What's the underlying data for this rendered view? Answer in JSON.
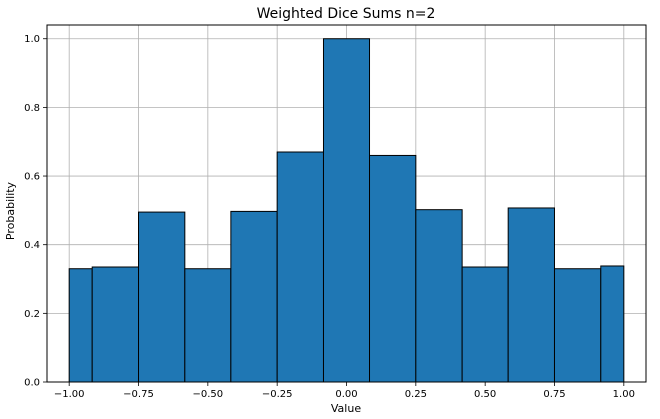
{
  "chart_data": {
    "type": "bar",
    "title": "Weighted Dice Sums n=2",
    "xlabel": "Value",
    "ylabel": "Probability",
    "xlim": [
      -1.08,
      1.08
    ],
    "ylim": [
      0,
      1.04
    ],
    "grid": true,
    "bar_color": "#1f77b4",
    "edge_color": "#000000",
    "x_ticks": [
      -1.0,
      -0.75,
      -0.5,
      -0.25,
      0.0,
      0.25,
      0.5,
      0.75,
      1.0
    ],
    "x_tick_labels": [
      "−1.00",
      "−0.75",
      "−0.50",
      "−0.25",
      "0.00",
      "0.25",
      "0.50",
      "0.75",
      "1.00"
    ],
    "y_ticks": [
      0.0,
      0.2,
      0.4,
      0.6,
      0.8,
      1.0
    ],
    "y_tick_labels": [
      "0.0",
      "0.2",
      "0.4",
      "0.6",
      "0.8",
      "1.0"
    ],
    "bins": [
      {
        "left": -1.0,
        "right": -0.917,
        "value": 0.33
      },
      {
        "left": -0.917,
        "right": -0.75,
        "value": 0.335
      },
      {
        "left": -0.75,
        "right": -0.583,
        "value": 0.495
      },
      {
        "left": -0.583,
        "right": -0.417,
        "value": 0.33
      },
      {
        "left": -0.417,
        "right": -0.25,
        "value": 0.497
      },
      {
        "left": -0.25,
        "right": -0.083,
        "value": 0.67
      },
      {
        "left": -0.083,
        "right": 0.083,
        "value": 1.0
      },
      {
        "left": 0.083,
        "right": 0.25,
        "value": 0.66
      },
      {
        "left": 0.25,
        "right": 0.417,
        "value": 0.502
      },
      {
        "left": 0.417,
        "right": 0.583,
        "value": 0.335
      },
      {
        "left": 0.583,
        "right": 0.75,
        "value": 0.507
      },
      {
        "left": 0.75,
        "right": 0.917,
        "value": 0.33
      },
      {
        "left": 0.917,
        "right": 1.0,
        "value": 0.338
      }
    ]
  }
}
